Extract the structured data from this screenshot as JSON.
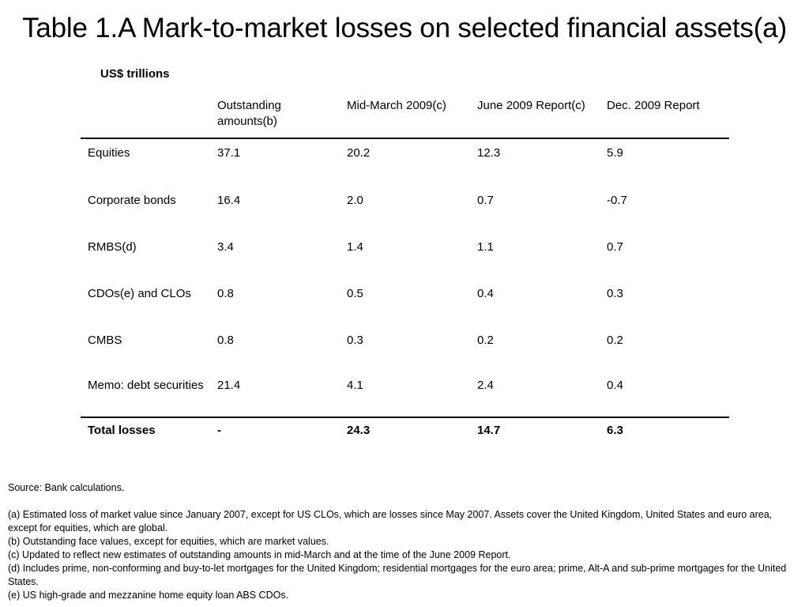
{
  "title": "Table 1.A  Mark-to-market losses on selected financial assets(a)",
  "units": "US$ trillions",
  "table": {
    "headers": [
      "",
      "Outstanding amounts(b)",
      "Mid-March 2009(c)",
      "June 2009 Report(c)",
      "Dec. 2009 Report"
    ],
    "rows": [
      [
        "Equities",
        "37.1",
        "20.2",
        "12.3",
        "5.9"
      ],
      [
        "Corporate bonds",
        "16.4",
        "2.0",
        "0.7",
        "-0.7"
      ],
      [
        "RMBS(d)",
        "3.4",
        "1.4",
        "1.1",
        "0.7"
      ],
      [
        "CDOs(e) and CLOs",
        "0.8",
        "0.5",
        "0.4",
        "0.3"
      ],
      [
        "CMBS",
        "0.8",
        "0.3",
        "0.2",
        "0.2"
      ],
      [
        "Memo: debt securities",
        "21.4",
        "4.1",
        "2.4",
        "0.4"
      ]
    ],
    "total": [
      "Total losses",
      "-",
      "24.3",
      "14.7",
      "6.3"
    ]
  },
  "notes": {
    "source": "Source:  Bank calculations.",
    "items": [
      "(a)  Estimated loss of market value since January 2007, except for US CLOs, which are losses since May 2007. Assets cover the United Kingdom, United States and euro area, except for equities, which are global.",
      "(b) Outstanding face values, except for equities, which are market values.",
      "(c)  Updated to reflect new estimates of outstanding amounts in mid-March and at the time of the June 2009 Report.",
      "(d)  Includes prime, non-conforming and buy-to-let mortgages for the United Kingdom;  residential mortgages for the euro area;  prime, Alt-A and sub-prime mortgages for the United States.",
      "(e)  US high-grade and mezzanine home equity loan ABS CDOs."
    ]
  }
}
